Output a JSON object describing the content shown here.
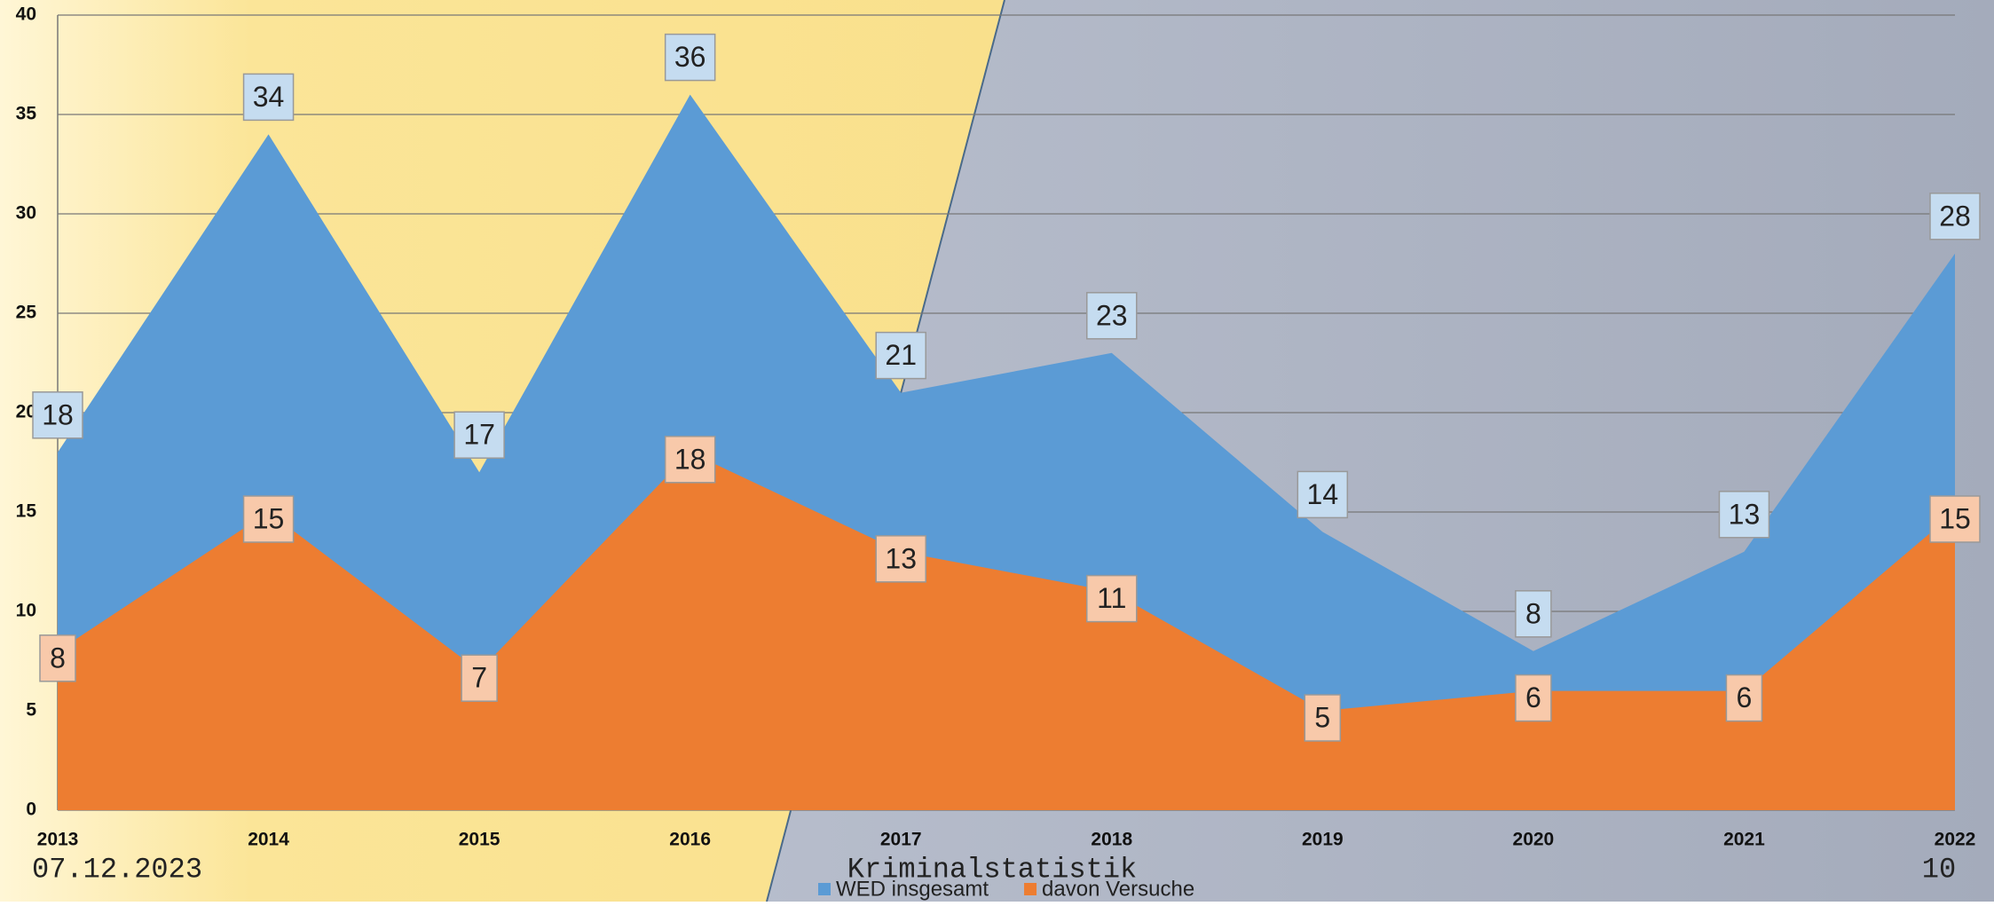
{
  "chart_data": {
    "type": "area",
    "categories": [
      "2013",
      "2014",
      "2015",
      "2016",
      "2017",
      "2018",
      "2019",
      "2020",
      "2021",
      "2022"
    ],
    "series": [
      {
        "name": "WED insgesamt",
        "color": "#5b9bd5",
        "label_color": "#c5dcf0",
        "values": [
          18,
          34,
          17,
          36,
          21,
          23,
          14,
          8,
          13,
          28
        ]
      },
      {
        "name": "davon Versuche",
        "color": "#ed7d31",
        "label_color": "#f8c9aa",
        "values": [
          8,
          15,
          7,
          18,
          13,
          11,
          5,
          6,
          6,
          15
        ]
      }
    ],
    "ylim": [
      0,
      40
    ],
    "yticks": [
      0,
      5,
      10,
      15,
      20,
      25,
      30,
      35,
      40
    ],
    "grid": true,
    "legend": "bottom"
  },
  "footer": {
    "date": "07.12.2023",
    "title": "Kriminalstatistik",
    "page": "10"
  }
}
